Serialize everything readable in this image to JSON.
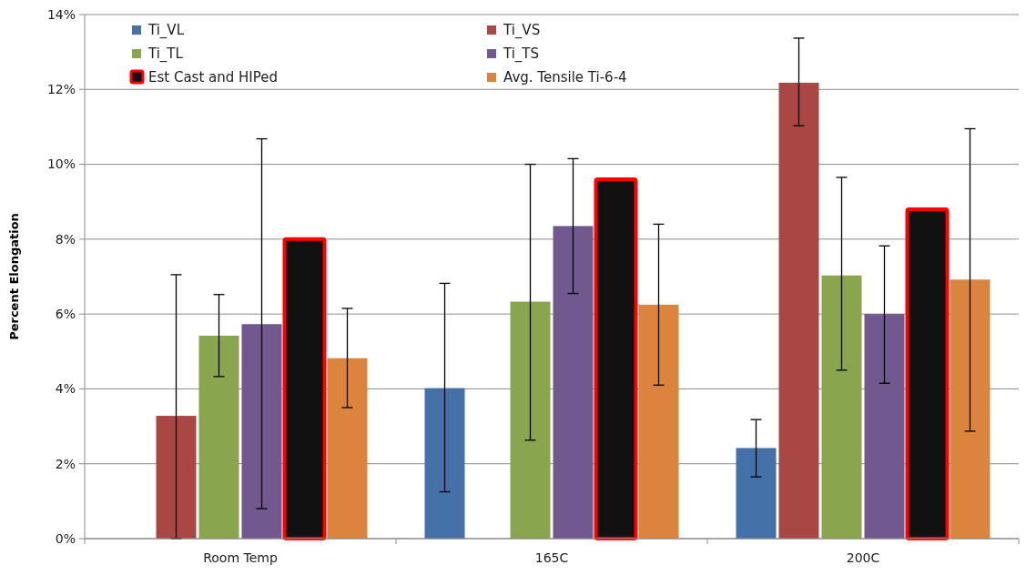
{
  "chart_data": {
    "type": "bar",
    "ylabel": "Percent Elongation",
    "categories": [
      "Room Temp",
      "165C",
      "200C"
    ],
    "series": [
      {
        "name": "Ti_VL",
        "color": "#4472a8",
        "values": [
          null,
          4.02,
          2.42
        ],
        "errors": [
          null,
          [
            1.25,
            6.82
          ],
          [
            1.65,
            3.18
          ]
        ]
      },
      {
        "name": "Ti_VS",
        "color": "#a94744",
        "values": [
          3.28,
          null,
          12.18
        ],
        "errors": [
          [
            0,
            7.05
          ],
          null,
          [
            11.03,
            13.37
          ]
        ]
      },
      {
        "name": "Ti_TL",
        "color": "#89a54e",
        "values": [
          5.42,
          6.33,
          7.03
        ],
        "errors": [
          [
            4.33,
            6.52
          ],
          [
            2.63,
            10.0
          ],
          [
            4.5,
            9.65
          ]
        ]
      },
      {
        "name": "Ti_TS",
        "color": "#71588f",
        "values": [
          5.73,
          8.35,
          6.0
        ],
        "errors": [
          [
            0.8,
            10.68
          ],
          [
            6.55,
            10.15
          ],
          [
            4.15,
            7.82
          ]
        ]
      },
      {
        "name": "Est Cast and HIPed",
        "color": "#111111",
        "values": [
          8.0,
          9.6,
          8.8
        ]
      },
      {
        "name": "Avg. Tensile Ti-6-4",
        "color": "#db843d",
        "values": [
          4.82,
          6.25,
          6.92
        ],
        "errors": [
          [
            3.5,
            6.15
          ],
          [
            4.1,
            8.4
          ],
          [
            2.87,
            10.95
          ]
        ]
      }
    ],
    "ylim": [
      0,
      14
    ],
    "yticks": [
      {
        "value": 0,
        "label": "0%"
      },
      {
        "value": 2,
        "label": "2%"
      },
      {
        "value": 4,
        "label": "4%"
      },
      {
        "value": 6,
        "label": "6%"
      },
      {
        "value": 8,
        "label": "8%"
      },
      {
        "value": 10,
        "label": "10%"
      },
      {
        "value": 12,
        "label": "12%"
      },
      {
        "value": 14,
        "label": "14%"
      }
    ],
    "grid": "y",
    "legend": "top left"
  }
}
